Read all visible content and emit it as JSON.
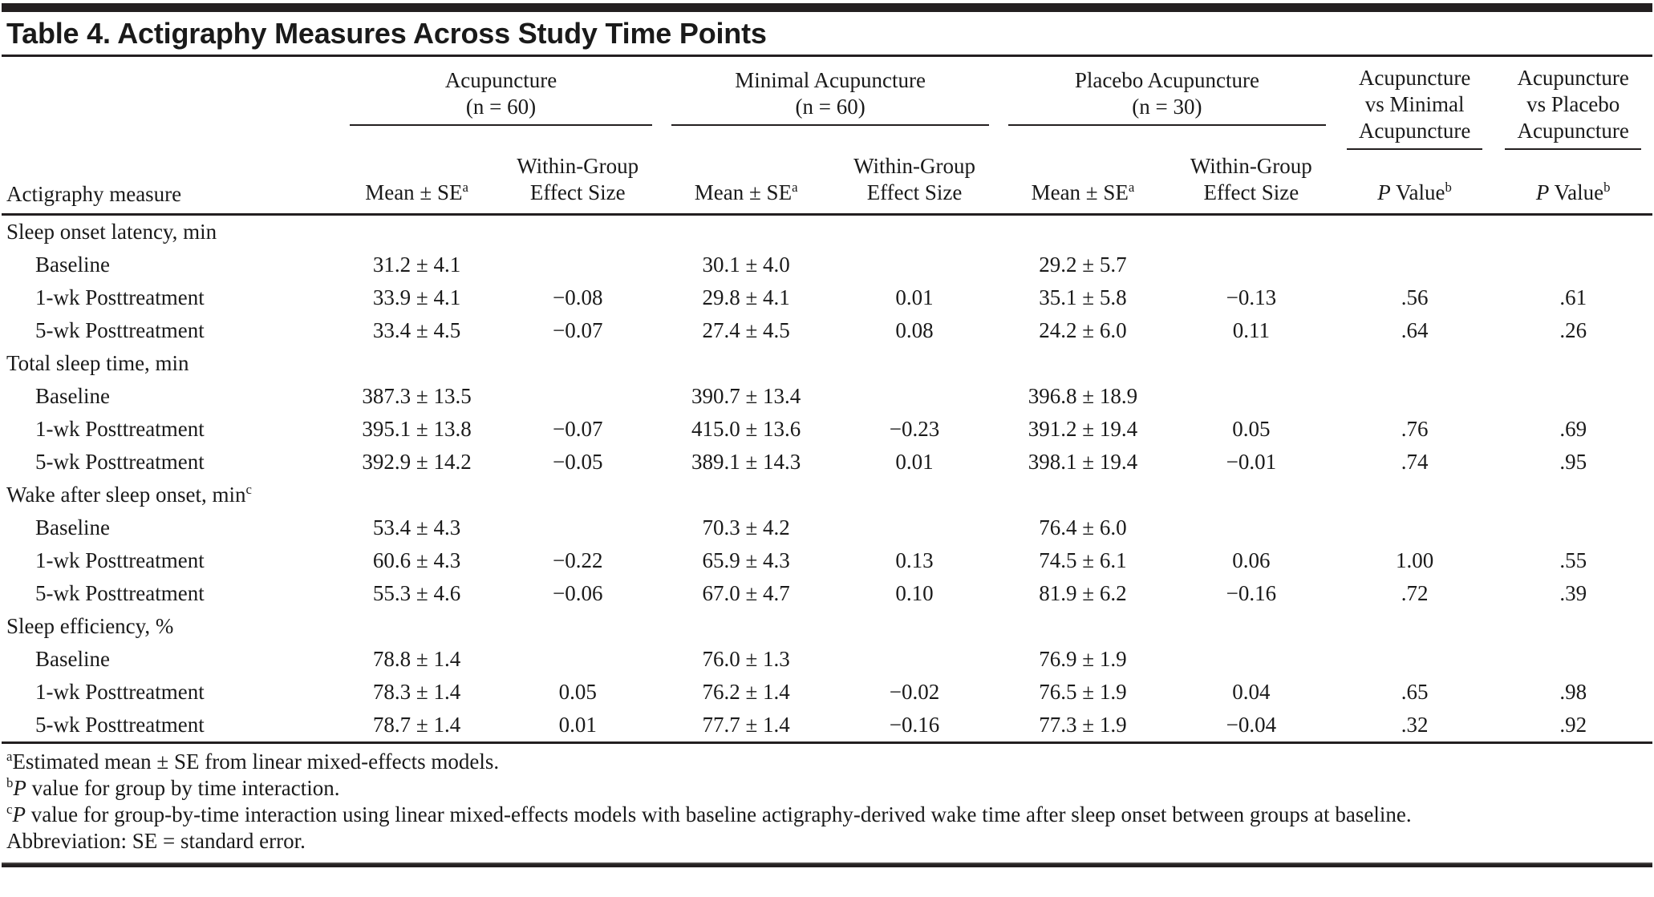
{
  "title": "Table 4. Actigraphy Measures Across Study Time Points",
  "header": {
    "measure_label": "Actigraphy measure",
    "groups": [
      {
        "line1": "Acupuncture",
        "line2": "(n = 60)"
      },
      {
        "line1": "Minimal Acupuncture",
        "line2": "(n = 60)"
      },
      {
        "line1": "Placebo Acupuncture",
        "line2": "(n = 30)"
      },
      {
        "line1": "Acupuncture",
        "line2": "vs Minimal",
        "line3": "Acupuncture"
      },
      {
        "line1": "Acupuncture",
        "line2": "vs Placebo",
        "line3": "Acupuncture"
      }
    ],
    "mean_se": {
      "text": "Mean ± SE",
      "sup": "a"
    },
    "effect_size": {
      "line1": "Within-Group",
      "line2": "Effect Size"
    },
    "p_value": {
      "italic": "P",
      "text": " Value",
      "sup": "b"
    }
  },
  "sections": [
    {
      "label": "Sleep onset latency, min",
      "sup": "",
      "rows": [
        {
          "label": "Baseline",
          "cells": [
            "31.2 ± 4.1",
            "",
            "30.1 ± 4.0",
            "",
            "29.2 ± 5.7",
            "",
            "",
            ""
          ]
        },
        {
          "label": "1-wk Posttreatment",
          "cells": [
            "33.9 ± 4.1",
            "−0.08",
            "29.8 ± 4.1",
            "0.01",
            "35.1 ± 5.8",
            "−0.13",
            ".56",
            ".61"
          ]
        },
        {
          "label": "5-wk Posttreatment",
          "cells": [
            "33.4 ± 4.5",
            "−0.07",
            "27.4 ± 4.5",
            "0.08",
            "24.2 ± 6.0",
            "0.11",
            ".64",
            ".26"
          ]
        }
      ]
    },
    {
      "label": "Total sleep time, min",
      "sup": "",
      "rows": [
        {
          "label": "Baseline",
          "cells": [
            "387.3 ± 13.5",
            "",
            "390.7 ± 13.4",
            "",
            "396.8 ± 18.9",
            "",
            "",
            ""
          ]
        },
        {
          "label": "1-wk Posttreatment",
          "cells": [
            "395.1 ± 13.8",
            "−0.07",
            "415.0 ± 13.6",
            "−0.23",
            "391.2 ± 19.4",
            "0.05",
            ".76",
            ".69"
          ]
        },
        {
          "label": "5-wk Posttreatment",
          "cells": [
            "392.9 ± 14.2",
            "−0.05",
            "389.1 ± 14.3",
            "0.01",
            "398.1 ± 19.4",
            "−0.01",
            ".74",
            ".95"
          ]
        }
      ]
    },
    {
      "label": "Wake after sleep onset, min",
      "sup": "c",
      "rows": [
        {
          "label": "Baseline",
          "cells": [
            "53.4 ± 4.3",
            "",
            "70.3 ± 4.2",
            "",
            "76.4 ± 6.0",
            "",
            "",
            ""
          ]
        },
        {
          "label": "1-wk Posttreatment",
          "cells": [
            "60.6 ± 4.3",
            "−0.22",
            "65.9 ± 4.3",
            "0.13",
            "74.5 ± 6.1",
            "0.06",
            "1.00",
            ".55"
          ]
        },
        {
          "label": "5-wk Posttreatment",
          "cells": [
            "55.3 ± 4.6",
            "−0.06",
            "67.0 ± 4.7",
            "0.10",
            "81.9 ± 6.2",
            "−0.16",
            ".72",
            ".39"
          ]
        }
      ]
    },
    {
      "label": "Sleep efficiency, %",
      "sup": "",
      "rows": [
        {
          "label": "Baseline",
          "cells": [
            "78.8 ± 1.4",
            "",
            "76.0 ± 1.3",
            "",
            "76.9 ± 1.9",
            "",
            "",
            ""
          ]
        },
        {
          "label": "1-wk Posttreatment",
          "cells": [
            "78.3 ± 1.4",
            "0.05",
            "76.2 ± 1.4",
            "−0.02",
            "76.5 ± 1.9",
            "0.04",
            ".65",
            ".98"
          ]
        },
        {
          "label": "5-wk Posttreatment",
          "cells": [
            "78.7 ± 1.4",
            "0.01",
            "77.7 ± 1.4",
            "−0.16",
            "77.3 ± 1.9",
            "−0.04",
            ".32",
            ".92"
          ]
        }
      ]
    }
  ],
  "footnotes": [
    {
      "sup": "a",
      "italic": "",
      "text": "Estimated mean ± SE from linear mixed-effects models."
    },
    {
      "sup": "b",
      "italic": "P",
      "text": " value for group by time interaction."
    },
    {
      "sup": "c",
      "italic": "P",
      "text": " value for group-by-time interaction using linear mixed-effects models with baseline actigraphy-derived wake time after sleep onset between groups at baseline."
    },
    {
      "sup": "",
      "italic": "",
      "text": "Abbreviation: SE = standard error."
    }
  ],
  "colors": {
    "rule": "#231f20",
    "text": "#1a1a1a",
    "background": "#ffffff"
  }
}
